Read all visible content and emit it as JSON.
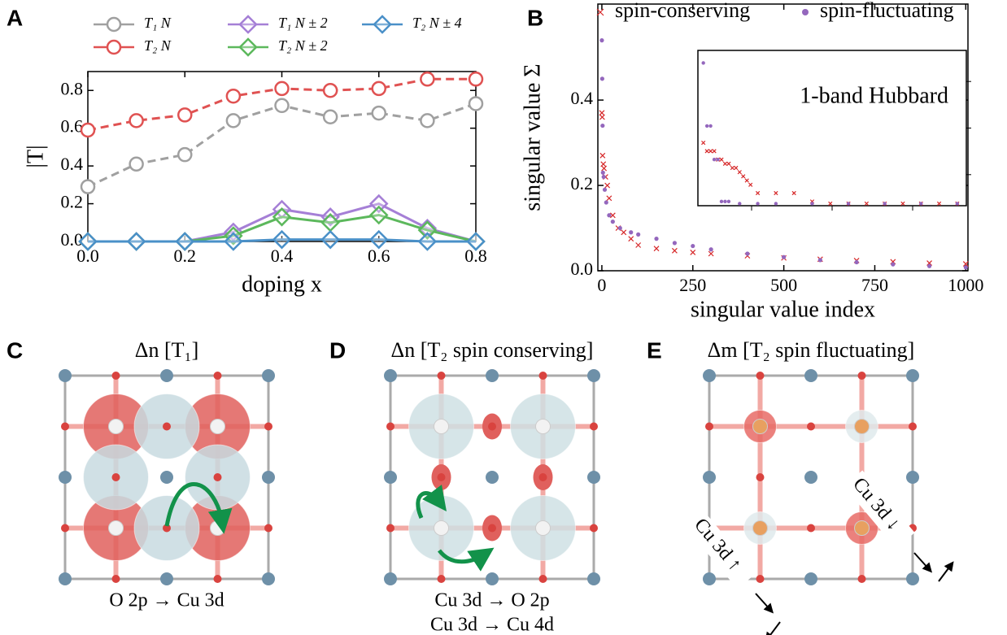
{
  "chart_data": [
    {
      "type": "line",
      "panel_label": "A",
      "xlabel": "doping x",
      "ylabel": "|T|",
      "x": [
        0,
        0.1,
        0.2,
        0.3,
        0.4,
        0.5,
        0.6,
        0.7,
        0.8
      ],
      "series": [
        {
          "name": "T₁ N",
          "color": "#a0a0a0",
          "marker": "circle",
          "linestyle": "dashed",
          "values": [
            0.29,
            0.41,
            0.46,
            0.64,
            0.72,
            0.66,
            0.68,
            0.64,
            0.73
          ]
        },
        {
          "name": "T₂ N",
          "color": "#e05252",
          "marker": "circle",
          "linestyle": "dashed",
          "values": [
            0.59,
            0.64,
            0.67,
            0.77,
            0.81,
            0.8,
            0.81,
            0.86,
            0.86
          ]
        },
        {
          "name": "T₁ N ± 2",
          "color": "#a57fd6",
          "marker": "diamond",
          "linestyle": "solid",
          "values": [
            0,
            0,
            0,
            0.05,
            0.17,
            0.13,
            0.2,
            0.07,
            0
          ]
        },
        {
          "name": "T₂ N ± 2",
          "color": "#5cb85c",
          "marker": "diamond",
          "linestyle": "solid",
          "values": [
            0,
            0,
            0,
            0.03,
            0.13,
            0.1,
            0.14,
            0.06,
            0
          ]
        },
        {
          "name": "T₂ N ± 4",
          "color": "#4a90c8",
          "marker": "diamond",
          "linestyle": "solid",
          "values": [
            0,
            0,
            0,
            0,
            0.01,
            0.01,
            0.01,
            0,
            0
          ]
        }
      ],
      "xlim": [
        0,
        0.8
      ],
      "xticks": [
        {
          "value": 0,
          "label": "0.0"
        },
        0.2,
        0.4,
        0.6,
        0.8
      ],
      "ylim": [
        0,
        0.9
      ],
      "yticks": [
        {
          "value": 0,
          "label": "0.0"
        },
        0.2,
        0.4,
        0.6,
        0.8
      ],
      "legend": "above"
    },
    {
      "type": "scatter",
      "panel_label": "B",
      "xlabel": "singular value index",
      "ylabel": "singular value Σ",
      "series": [
        {
          "name": "spin-conserving",
          "color": "#d62728",
          "marker": "x",
          "x": [
            0,
            1,
            2,
            4,
            6,
            10,
            15,
            20,
            30,
            45,
            60,
            80,
            100,
            150,
            200,
            250,
            300,
            400,
            500,
            600,
            700,
            800,
            900,
            1000
          ],
          "values": [
            0.37,
            0.36,
            0.27,
            0.25,
            0.24,
            0.22,
            0.2,
            0.17,
            0.13,
            0.1,
            0.09,
            0.075,
            0.06,
            0.052,
            0.047,
            0.043,
            0.04,
            0.035,
            0.03,
            0.027,
            0.024,
            0.021,
            0.018,
            0.016
          ]
        },
        {
          "name": "spin-fluctuating",
          "color": "#9467bd",
          "marker": "dot",
          "x": [
            0,
            1,
            2,
            3,
            5,
            8,
            12,
            20,
            30,
            50,
            80,
            100,
            150,
            200,
            250,
            300,
            400,
            500,
            600,
            700,
            800,
            900,
            1000
          ],
          "values": [
            0.54,
            0.45,
            0.34,
            0.23,
            0.22,
            0.19,
            0.16,
            0.13,
            0.115,
            0.1,
            0.09,
            0.085,
            0.075,
            0.065,
            0.058,
            0.05,
            0.04,
            0.032,
            0.025,
            0.02,
            0.015,
            0.011,
            0.008
          ]
        }
      ],
      "xlim": [
        -11,
        1006
      ],
      "xticks": [
        0,
        250,
        500,
        750,
        1000
      ],
      "ylim": [
        0,
        0.625
      ],
      "yticks": [
        {
          "value": 0,
          "label": "0.0"
        },
        0.2,
        0.4
      ],
      "legend": "above"
    },
    {
      "type": "scatter",
      "title": "1-band Hubbard",
      "series": [
        {
          "color": "#d62728",
          "marker": "x",
          "x": [
            0,
            2,
            4,
            6,
            8,
            10,
            12,
            14,
            16,
            18,
            20,
            22,
            24,
            26,
            30,
            40,
            50,
            60,
            70,
            80,
            90,
            100,
            110,
            120,
            130,
            140
          ],
          "values": [
            0.3,
            0.28,
            0.28,
            0.28,
            0.26,
            0.26,
            0.25,
            0.25,
            0.24,
            0.24,
            0.23,
            0.22,
            0.21,
            0.2,
            0.18,
            0.18,
            0.18,
            0.16,
            0.155,
            0.155,
            0.155,
            0.155,
            0.155,
            0.155,
            0.155,
            0.155
          ]
        },
        {
          "color": "#9467bd",
          "marker": "dot",
          "x": [
            0,
            2,
            4,
            6,
            8,
            10,
            12,
            14,
            20,
            30,
            40,
            60,
            80,
            100,
            120,
            140
          ],
          "values": [
            0.49,
            0.34,
            0.34,
            0.26,
            0.26,
            0.16,
            0.16,
            0.16,
            0.155,
            0.155,
            0.155,
            0.155,
            0.155,
            0.155,
            0.155,
            0.155
          ]
        }
      ],
      "xlim": [
        -3,
        145
      ],
      "ylim": [
        0.15,
        0.52
      ]
    }
  ],
  "panels": [
    {
      "label": "C",
      "title": "Δn [T₁]",
      "captions": [
        "O 2p → Cu 3d"
      ]
    },
    {
      "label": "D",
      "title": "Δn [T₂ spin conserving]",
      "captions": [
        "Cu 3d → O 2p",
        "Cu 3d → Cu 4d"
      ]
    },
    {
      "label": "E",
      "title": "Δm [T₂ spin fluctuating]",
      "annotations": [
        "Cu 3d ↓",
        "Cu 3d ↑"
      ]
    }
  ]
}
